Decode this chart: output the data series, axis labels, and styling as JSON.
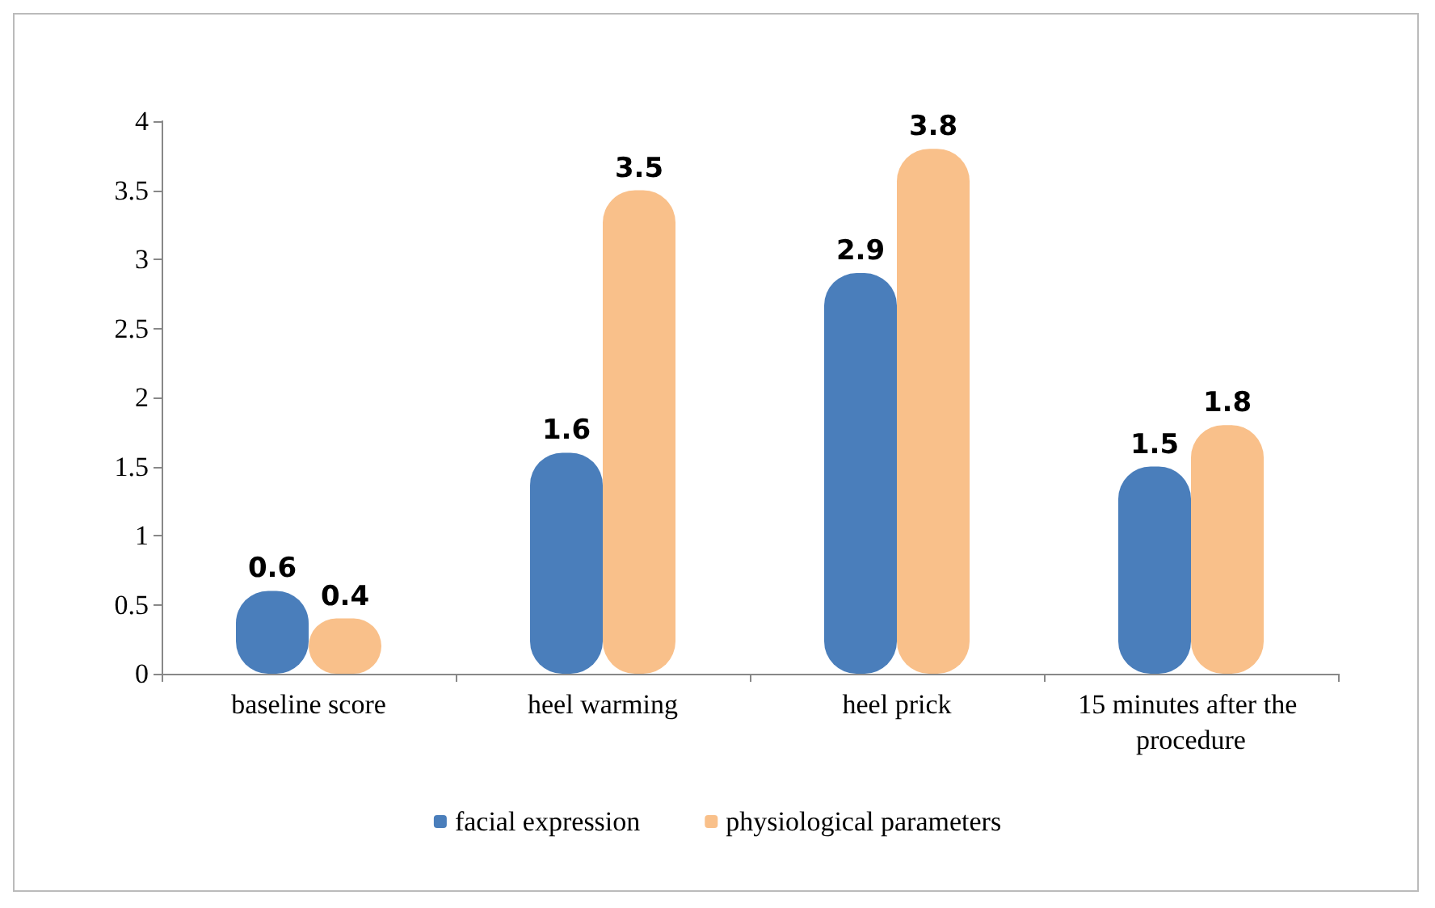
{
  "chart_data": {
    "type": "bar",
    "categories": [
      "baseline score",
      "heel warming",
      "heel prick",
      "15 minutes after the procedure"
    ],
    "series": [
      {
        "name": "facial expression",
        "color": "#4a7ebb",
        "values": [
          0.6,
          1.6,
          2.9,
          1.5
        ]
      },
      {
        "name": "physiological parameters",
        "color": "#f9c08a",
        "values": [
          0.4,
          3.5,
          3.8,
          1.8
        ]
      }
    ],
    "ylim": [
      0,
      4
    ],
    "yticks": [
      0,
      0.5,
      1,
      1.5,
      2,
      2.5,
      3,
      3.5,
      4
    ],
    "grid": false,
    "legend": "bottom",
    "data_labels": true
  }
}
